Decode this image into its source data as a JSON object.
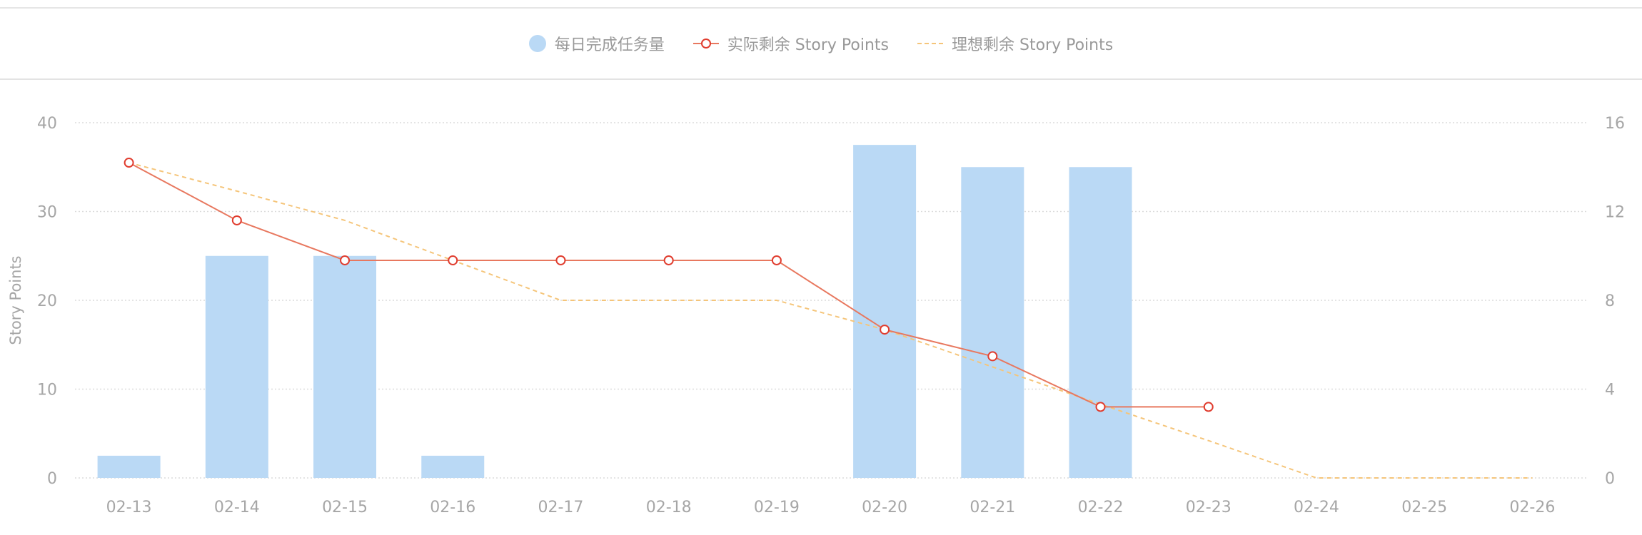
{
  "legend": {
    "bar_label": "每日完成任务量",
    "actual_label": "实际剩余 Story Points",
    "ideal_label": "理想剩余 Story Points"
  },
  "colors": {
    "bar": "#bad9f5",
    "actual": "#e8785f",
    "actual_point_stroke": "#e03c2e",
    "ideal": "#f5c57a",
    "grid": "#dcdcdc",
    "tick": "#a6a6a6"
  },
  "chart_data": {
    "type": "bar",
    "categories": [
      "02-13",
      "02-14",
      "02-15",
      "02-16",
      "02-17",
      "02-18",
      "02-19",
      "02-20",
      "02-21",
      "02-22",
      "02-23",
      "02-24",
      "02-25",
      "02-26"
    ],
    "y_left": {
      "label": "Story Points",
      "ylim": [
        0,
        40
      ],
      "ticks": [
        "0",
        "10",
        "20",
        "30",
        "40"
      ]
    },
    "y_right": {
      "label": "",
      "ylim": [
        0,
        16
      ],
      "ticks": [
        "0",
        "4",
        "8",
        "12",
        "16"
      ]
    },
    "grid": true,
    "legend_position": "top-center",
    "series": [
      {
        "name": "每日完成任务量",
        "type": "bar",
        "axis": "right",
        "values": [
          1,
          10,
          10,
          1,
          0,
          0,
          0,
          15,
          14,
          14,
          0,
          0,
          0,
          0
        ]
      },
      {
        "name": "实际剩余 Story Points",
        "type": "line",
        "axis": "left",
        "markers": true,
        "values": [
          35.5,
          29,
          24.5,
          24.5,
          24.5,
          24.5,
          24.5,
          16.7,
          13.7,
          8,
          8,
          null,
          null,
          null
        ]
      },
      {
        "name": "理想剩余 Story Points",
        "type": "line",
        "axis": "left",
        "dashed": true,
        "values": [
          35.5,
          32.3,
          29,
          24.5,
          20,
          20,
          20,
          16.7,
          12.5,
          8.3,
          4.2,
          0,
          0,
          0
        ]
      }
    ]
  }
}
